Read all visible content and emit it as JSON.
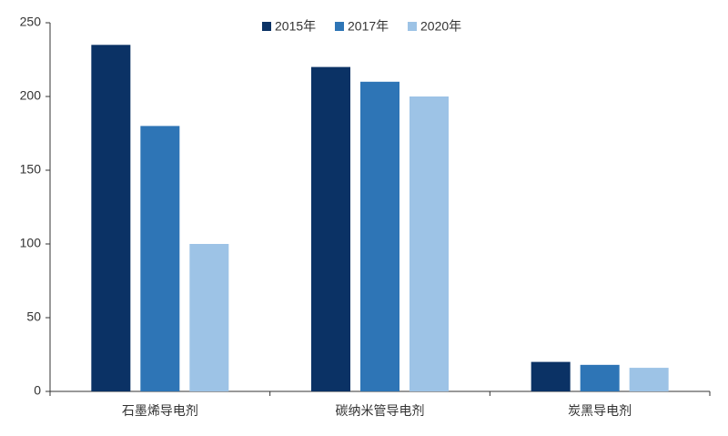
{
  "chart_data": {
    "type": "bar",
    "categories": [
      "石墨烯导电剂",
      "碳纳米管导电剂",
      "炭黑导电剂"
    ],
    "series": [
      {
        "name": "2015年",
        "color": "#0b3265",
        "values": [
          235,
          220,
          20
        ]
      },
      {
        "name": "2017年",
        "color": "#2e75b6",
        "values": [
          180,
          210,
          18
        ]
      },
      {
        "name": "2020年",
        "color": "#9dc3e6",
        "values": [
          100,
          200,
          16
        ]
      }
    ],
    "ylim": [
      0,
      250
    ],
    "yticks": [
      0,
      50,
      100,
      150,
      200,
      250
    ],
    "grid": false,
    "legend": "top"
  }
}
